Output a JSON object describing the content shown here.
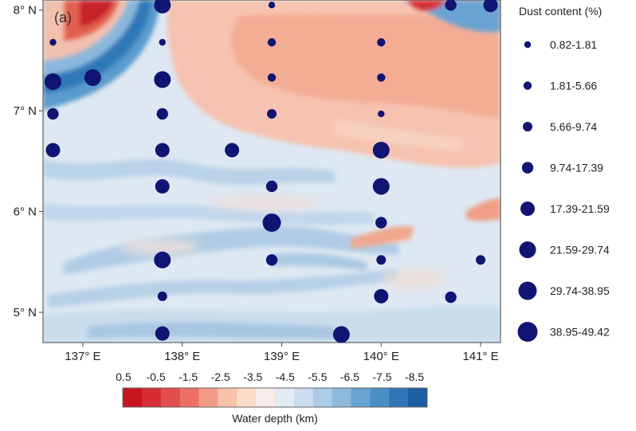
{
  "panel_label": "(a)",
  "map": {
    "lon_range": [
      136.6,
      141.2
    ],
    "lat_range": [
      4.7,
      8.1
    ],
    "x_ticks": [
      {
        "value": 137,
        "label": "137° E"
      },
      {
        "value": 138,
        "label": "138° E"
      },
      {
        "value": 139,
        "label": "139° E"
      },
      {
        "value": 140,
        "label": "140° E"
      },
      {
        "value": 141,
        "label": "141° E"
      }
    ],
    "y_ticks": [
      {
        "value": 8,
        "label": "8° N"
      },
      {
        "value": 7,
        "label": "7° N"
      },
      {
        "value": 6,
        "label": "6° N"
      },
      {
        "value": 5,
        "label": "5° N"
      }
    ]
  },
  "dust_legend": {
    "title": "Dust content (%)",
    "classes": [
      {
        "label": "0.82-1.81",
        "class": 1
      },
      {
        "label": "1.81-5.66",
        "class": 2
      },
      {
        "label": "5.66-9.74",
        "class": 3
      },
      {
        "label": "9.74-17.39",
        "class": 4
      },
      {
        "label": "17.39-21.59",
        "class": 5
      },
      {
        "label": "21.59-29.74",
        "class": 6
      },
      {
        "label": "29.74-38.95",
        "class": 7
      },
      {
        "label": "38.95-49.42",
        "class": 8
      }
    ]
  },
  "stations": [
    {
      "lon": 137.8,
      "lat": 8.05,
      "class": 6
    },
    {
      "lon": 138.9,
      "lat": 8.05,
      "class": 1
    },
    {
      "lon": 140.7,
      "lat": 8.05,
      "class": 4
    },
    {
      "lon": 141.1,
      "lat": 8.05,
      "class": 5
    },
    {
      "lon": 136.7,
      "lat": 7.68,
      "class": 1
    },
    {
      "lon": 137.8,
      "lat": 7.68,
      "class": 1
    },
    {
      "lon": 138.9,
      "lat": 7.68,
      "class": 2
    },
    {
      "lon": 140.0,
      "lat": 7.68,
      "class": 2
    },
    {
      "lon": 136.7,
      "lat": 7.29,
      "class": 6
    },
    {
      "lon": 137.1,
      "lat": 7.33,
      "class": 6
    },
    {
      "lon": 137.8,
      "lat": 7.31,
      "class": 6
    },
    {
      "lon": 138.9,
      "lat": 7.33,
      "class": 2
    },
    {
      "lon": 140.0,
      "lat": 7.33,
      "class": 2
    },
    {
      "lon": 136.7,
      "lat": 6.97,
      "class": 4
    },
    {
      "lon": 137.8,
      "lat": 6.97,
      "class": 4
    },
    {
      "lon": 138.9,
      "lat": 6.97,
      "class": 3
    },
    {
      "lon": 140.0,
      "lat": 6.97,
      "class": 1
    },
    {
      "lon": 136.7,
      "lat": 6.61,
      "class": 5
    },
    {
      "lon": 137.8,
      "lat": 6.61,
      "class": 5
    },
    {
      "lon": 138.5,
      "lat": 6.61,
      "class": 5
    },
    {
      "lon": 140.0,
      "lat": 6.61,
      "class": 6
    },
    {
      "lon": 137.8,
      "lat": 6.25,
      "class": 5
    },
    {
      "lon": 138.9,
      "lat": 6.25,
      "class": 4
    },
    {
      "lon": 140.0,
      "lat": 6.25,
      "class": 6
    },
    {
      "lon": 138.9,
      "lat": 5.89,
      "class": 7
    },
    {
      "lon": 140.0,
      "lat": 5.89,
      "class": 4
    },
    {
      "lon": 137.8,
      "lat": 5.52,
      "class": 6
    },
    {
      "lon": 138.9,
      "lat": 5.52,
      "class": 4
    },
    {
      "lon": 140.0,
      "lat": 5.52,
      "class": 3
    },
    {
      "lon": 141.0,
      "lat": 5.52,
      "class": 3
    },
    {
      "lon": 137.8,
      "lat": 5.16,
      "class": 3
    },
    {
      "lon": 140.0,
      "lat": 5.16,
      "class": 5
    },
    {
      "lon": 140.7,
      "lat": 5.15,
      "class": 4
    },
    {
      "lon": 137.8,
      "lat": 4.79,
      "class": 5
    },
    {
      "lon": 139.6,
      "lat": 4.78,
      "class": 6
    }
  ],
  "colorbar": {
    "title": "Water depth (km)",
    "tick_labels": [
      "0.5",
      "-0.5",
      "-1.5",
      "-2.5",
      "-3.5",
      "-4.5",
      "-5.5",
      "-6.5",
      "-7.5",
      "-8.5"
    ],
    "colors": [
      "#c8141e",
      "#d62c34",
      "#e14c4c",
      "#ec7064",
      "#f39a86",
      "#f8c2aa",
      "#fbdccb",
      "#f6ecea",
      "#e2eaf2",
      "#cadced",
      "#adcce6",
      "#8cb9dc",
      "#6aa3d1",
      "#4a8ec6",
      "#2e76b6",
      "#1b5ea1"
    ]
  },
  "colors": {
    "station_marker": "#101573",
    "frame": "#444444"
  }
}
